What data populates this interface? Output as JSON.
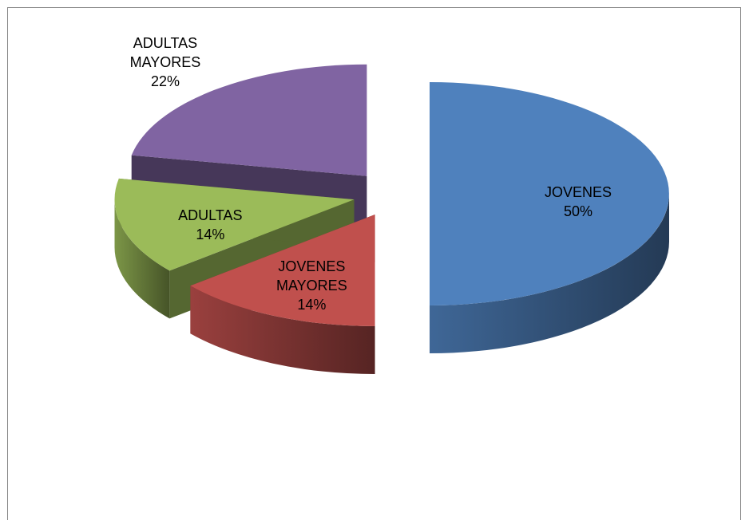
{
  "chart_data": {
    "type": "pie",
    "categories": [
      "JOVENES",
      "JOVENES MAYORES",
      "ADULTAS",
      "ADULTAS MAYORES"
    ],
    "values": [
      50,
      14,
      14,
      22
    ],
    "value_labels": [
      "50%",
      "14%",
      "14%",
      "22%"
    ],
    "colors": [
      "#4f81bd",
      "#c0504d",
      "#9bbb59",
      "#8064a2"
    ]
  }
}
